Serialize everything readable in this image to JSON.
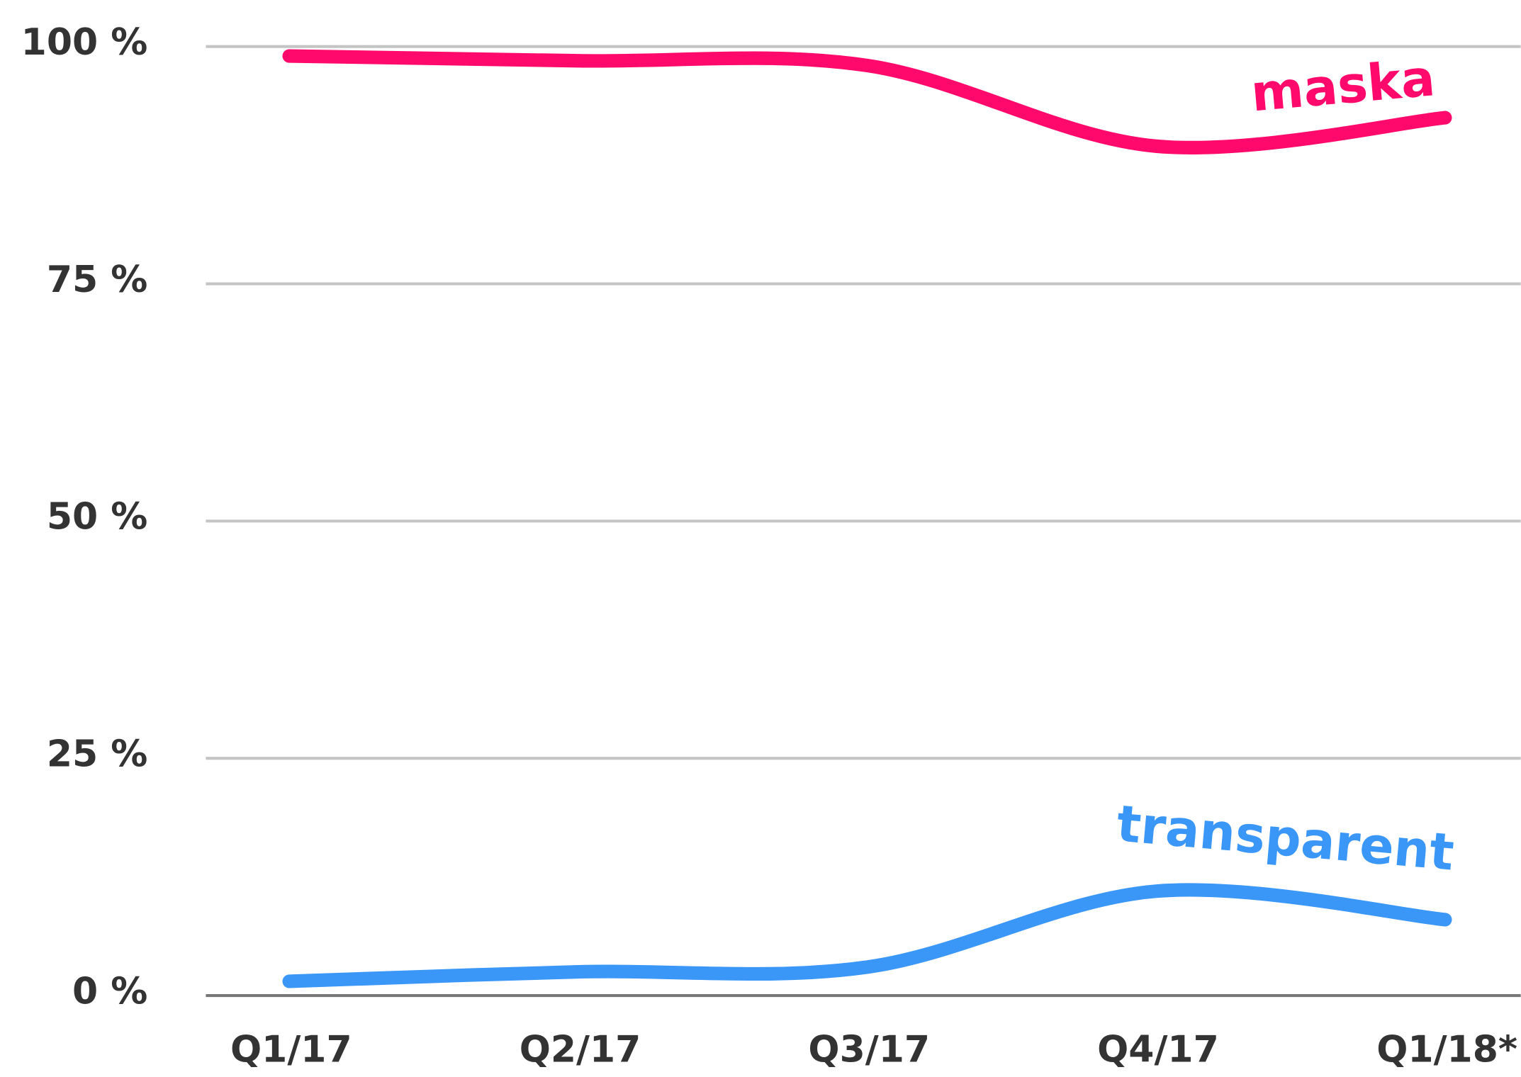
{
  "chart_data": {
    "type": "line",
    "categories": [
      "Q1/17",
      "Q2/17",
      "Q3/17",
      "Q4/17",
      "Q1/18*"
    ],
    "series": [
      {
        "name": "maska",
        "color": "#ff0a6c",
        "values": [
          99,
          98.5,
          98,
          89.5,
          92.5
        ]
      },
      {
        "name": "transparent",
        "color": "#3a96f7",
        "values": [
          1.5,
          2.5,
          3,
          11,
          8
        ]
      }
    ],
    "ylim": [
      0,
      100
    ],
    "yticks": [
      {
        "value": 0,
        "label": "0 %"
      },
      {
        "value": 25,
        "label": "25 %"
      },
      {
        "value": 50,
        "label": "50 %"
      },
      {
        "value": 75,
        "label": "75 %"
      },
      {
        "value": 100,
        "label": "100 %"
      }
    ],
    "grid": true
  }
}
